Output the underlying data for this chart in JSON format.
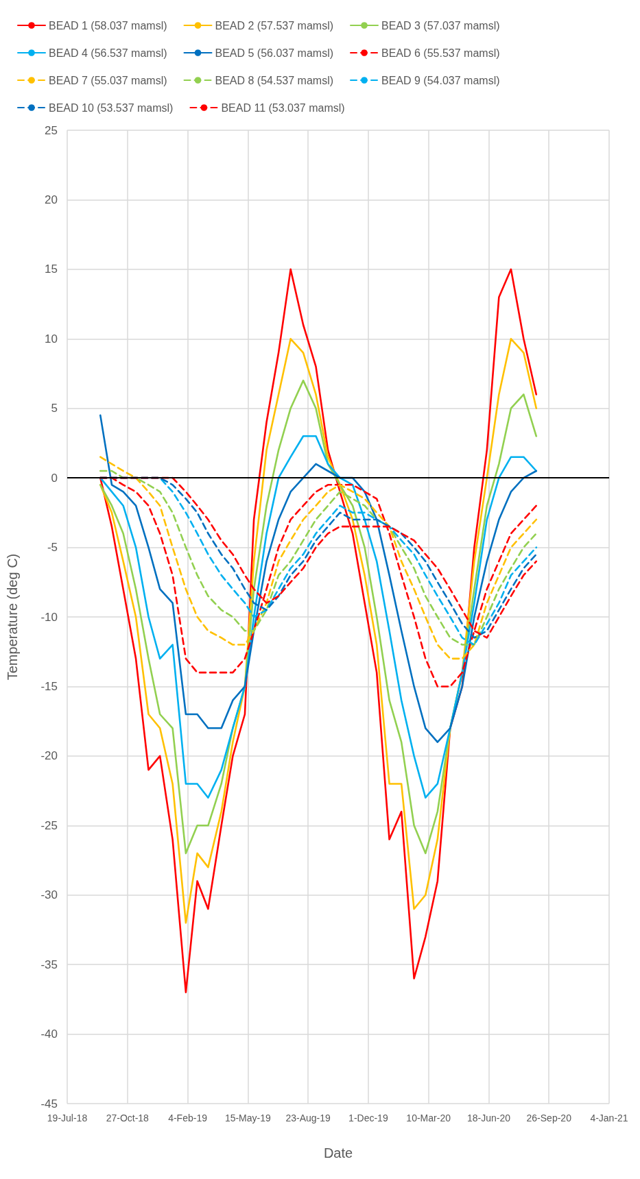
{
  "chart_data": {
    "type": "line",
    "xlabel": "Date",
    "ylabel": "Temperature (deg C)",
    "xlim": [
      "2018-07-19",
      "2021-01-04"
    ],
    "xticks": [
      {
        "value": "2018-07-19",
        "label": "19-Jul-18"
      },
      {
        "value": "2018-10-27",
        "label": "27-Oct-18"
      },
      {
        "value": "2019-02-04",
        "label": "4-Feb-19"
      },
      {
        "value": "2019-05-15",
        "label": "15-May-19"
      },
      {
        "value": "2019-08-23",
        "label": "23-Aug-19"
      },
      {
        "value": "2019-12-01",
        "label": "1-Dec-19"
      },
      {
        "value": "2020-03-10",
        "label": "10-Mar-20"
      },
      {
        "value": "2020-06-18",
        "label": "18-Jun-20"
      },
      {
        "value": "2020-09-26",
        "label": "26-Sep-20"
      },
      {
        "value": "2021-01-04",
        "label": "4-Jan-21"
      }
    ],
    "ylim": [
      -45,
      25
    ],
    "yticks": [
      -45,
      -40,
      -35,
      -30,
      -25,
      -20,
      -15,
      -10,
      -5,
      0,
      5,
      10,
      15,
      20,
      25
    ],
    "grid": true,
    "legend": "top",
    "marker": "none",
    "ref_lines": [
      {
        "axis": "y",
        "value": 0,
        "color": "#000000"
      }
    ],
    "x": [
      "2018-09-12",
      "2018-10-01",
      "2018-10-20",
      "2018-11-10",
      "2018-12-01",
      "2018-12-20",
      "2019-01-10",
      "2019-02-01",
      "2019-02-20",
      "2019-03-10",
      "2019-04-01",
      "2019-04-20",
      "2019-05-10",
      "2019-05-25",
      "2019-06-15",
      "2019-07-05",
      "2019-07-25",
      "2019-08-15",
      "2019-09-05",
      "2019-09-25",
      "2019-10-15",
      "2019-11-05",
      "2019-11-25",
      "2019-12-15",
      "2020-01-05",
      "2020-01-25",
      "2020-02-15",
      "2020-03-05",
      "2020-03-25",
      "2020-04-15",
      "2020-05-05",
      "2020-05-25",
      "2020-06-15",
      "2020-07-05",
      "2020-07-25",
      "2020-08-15",
      "2020-09-05"
    ],
    "series": [
      {
        "name": "BEAD 1 (58.037 mamsl)",
        "color": "#ff0000",
        "line_style": "solid",
        "values": [
          0,
          -3.5,
          -8,
          -13,
          -21,
          -20,
          -26,
          -37,
          -29,
          -31,
          -25,
          -20,
          -17,
          -3,
          4,
          9,
          15,
          11,
          8,
          2,
          -1,
          -4,
          -9,
          -14,
          -26,
          -24,
          -36,
          -33,
          -29,
          -18,
          -15,
          -5,
          2,
          13,
          15,
          10,
          6
        ]
      },
      {
        "name": "BEAD 2 (57.537 mamsl)",
        "color": "#ffc000",
        "line_style": "solid",
        "values": [
          -0.5,
          -2.5,
          -6,
          -10,
          -17,
          -18,
          -22,
          -32,
          -27,
          -28,
          -24,
          -19,
          -15,
          -6,
          2,
          6,
          10,
          9,
          6,
          1.5,
          -0.5,
          -3,
          -7,
          -12,
          -22,
          -22,
          -31,
          -30,
          -26,
          -18,
          -14,
          -6,
          0,
          6,
          10,
          9,
          5
        ]
      },
      {
        "name": "BEAD 3 (57.037 mamsl)",
        "color": "#92d050",
        "line_style": "solid",
        "values": [
          -0.5,
          -2,
          -4,
          -8,
          -13,
          -17,
          -18,
          -27,
          -25,
          -25,
          -22,
          -18,
          -15,
          -8,
          -2,
          2,
          5,
          7,
          5,
          1,
          -0.5,
          -2,
          -5,
          -10,
          -16,
          -19,
          -25,
          -27,
          -24,
          -18,
          -14,
          -8,
          -2,
          1,
          5,
          6,
          3
        ]
      },
      {
        "name": "BEAD 4 (56.537 mamsl)",
        "color": "#00b0f0",
        "line_style": "solid",
        "values": [
          0,
          -1,
          -2,
          -5,
          -10,
          -13,
          -12,
          -22,
          -22,
          -23,
          -21,
          -18,
          -15,
          -10,
          -4,
          0,
          1.5,
          3,
          3,
          1,
          0,
          -0.5,
          -3,
          -6,
          -11,
          -16,
          -20,
          -23,
          -22,
          -18,
          -14,
          -9,
          -3,
          0,
          1.5,
          1.5,
          0.5
        ]
      },
      {
        "name": "BEAD 5 (56.037 mamsl)",
        "color": "#0070c0",
        "line_style": "solid",
        "values": [
          4.5,
          -0.5,
          -1,
          -2,
          -5,
          -8,
          -9,
          -17,
          -17,
          -18,
          -18,
          -16,
          -15,
          -11,
          -6,
          -3,
          -1,
          0,
          1,
          0.5,
          0,
          0,
          -1,
          -3,
          -7,
          -11,
          -15,
          -18,
          -19,
          -18,
          -15,
          -10,
          -6,
          -3,
          -1,
          0,
          0.5
        ]
      },
      {
        "name": "BEAD 6 (55.537 mamsl)",
        "color": "#ff0000",
        "line_style": "dashed",
        "values": [
          0,
          0,
          -0.5,
          -1,
          -2,
          -4,
          -7,
          -13,
          -14,
          -14,
          -14,
          -14,
          -13,
          -11,
          -8,
          -5,
          -3,
          -2,
          -1,
          -0.5,
          -0.5,
          -0.5,
          -1,
          -1.5,
          -4,
          -7,
          -10,
          -13,
          -15,
          -15,
          -14,
          -11,
          -8,
          -6,
          -4,
          -3,
          -2
        ]
      },
      {
        "name": "BEAD 7 (55.037 mamsl)",
        "color": "#ffc000",
        "line_style": "dashed",
        "values": [
          1.5,
          1,
          0.5,
          0,
          -1,
          -2,
          -5,
          -8,
          -10,
          -11,
          -11.5,
          -12,
          -12,
          -11,
          -9,
          -6,
          -4.5,
          -3,
          -2,
          -1,
          -0.5,
          -1,
          -1.5,
          -2.5,
          -3.5,
          -6,
          -8,
          -10,
          -12,
          -13,
          -13,
          -12,
          -9,
          -7,
          -5,
          -4,
          -3
        ]
      },
      {
        "name": "BEAD 8 (54.537 mamsl)",
        "color": "#92d050",
        "line_style": "dashed",
        "values": [
          0.5,
          0.5,
          0,
          0,
          -0.5,
          -1,
          -2.5,
          -5,
          -7,
          -8.5,
          -9.5,
          -10,
          -11,
          -11,
          -9.5,
          -7,
          -6,
          -4.5,
          -3,
          -2,
          -1,
          -1.5,
          -2,
          -3,
          -3.5,
          -5,
          -6.5,
          -8.5,
          -10,
          -11.5,
          -12,
          -12,
          -10,
          -8,
          -6.5,
          -5,
          -4
        ]
      },
      {
        "name": "BEAD 9 (54.037 mamsl)",
        "color": "#00b0f0",
        "line_style": "dashed",
        "values": [
          0,
          0,
          0,
          0,
          0,
          0,
          -1,
          -2.5,
          -4,
          -5.5,
          -7,
          -8,
          -9,
          -10,
          -9.5,
          -8,
          -6.5,
          -5.5,
          -4,
          -3,
          -2,
          -2.5,
          -2.5,
          -3,
          -3.5,
          -4.5,
          -5.5,
          -7,
          -8.5,
          -10,
          -11.5,
          -12,
          -10.5,
          -9,
          -7,
          -6,
          -5
        ]
      },
      {
        "name": "BEAD 10 (53.537 mamsl)",
        "color": "#0070c0",
        "line_style": "dashed",
        "values": [
          0,
          0,
          0,
          0,
          0,
          0,
          -0.5,
          -1.5,
          -2.5,
          -4,
          -5.5,
          -6.5,
          -8,
          -9,
          -9.5,
          -8.5,
          -7,
          -6,
          -4.5,
          -3.5,
          -2.5,
          -3,
          -3,
          -3,
          -3.5,
          -4,
          -5,
          -6,
          -7.5,
          -9,
          -10.5,
          -11.5,
          -11,
          -9.5,
          -8,
          -6.5,
          -5.5
        ]
      },
      {
        "name": "BEAD 11 (53.037 mamsl)",
        "color": "#ff0000",
        "line_style": "dashed",
        "values": [
          0,
          0,
          0,
          0,
          0,
          0,
          0,
          -1,
          -2,
          -3,
          -4.5,
          -5.5,
          -7,
          -8,
          -9,
          -8.5,
          -7.5,
          -6.5,
          -5,
          -4,
          -3.5,
          -3.5,
          -3.5,
          -3.5,
          -3.5,
          -4,
          -4.5,
          -5.5,
          -6.5,
          -8,
          -9.5,
          -11,
          -11.5,
          -10,
          -8.5,
          -7,
          -6
        ]
      }
    ]
  }
}
